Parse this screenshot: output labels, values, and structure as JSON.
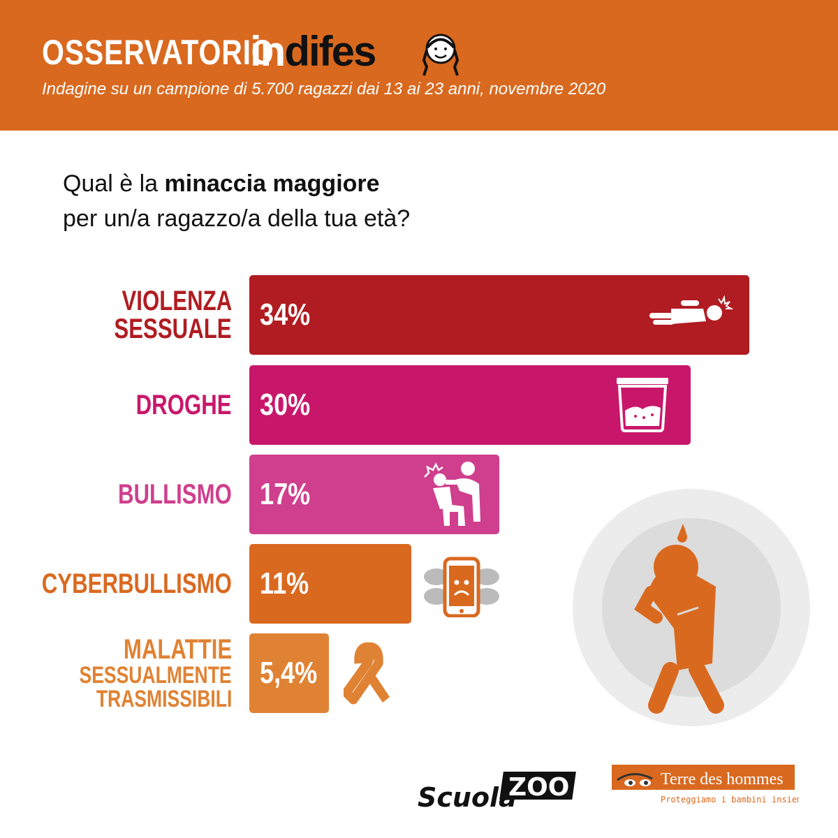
{
  "header": {
    "brand_prefix": "OSSERVATORIO",
    "brand_in": "in",
    "brand_difes": "difes",
    "subtitle": "Indagine su un campione di 5.700 ragazzi dai 13 ai 23 anni, novembre 2020"
  },
  "question": {
    "plain_start": "Qual è la",
    "bold": "minaccia maggiore",
    "line2": "per un/a ragazzo/a della tua età?"
  },
  "colors": {
    "header_bg": "#d9691f",
    "violenza": "#b01c21",
    "droghe": "#c8176b",
    "bullismo": "#cf3f8d",
    "cyber": "#d9691f",
    "malattie": "#e08233"
  },
  "chart_data": {
    "type": "bar",
    "orientation": "horizontal",
    "categories": [
      "VIOLENZA SESSUALE",
      "DROGHE",
      "BULLISMO",
      "CYBERBULLISMO",
      "MALATTIE SESSUALMENTE TRASMISSIBILI"
    ],
    "category_lines": [
      [
        "VIOLENZA",
        "SESSUALE"
      ],
      [
        "DROGHE"
      ],
      [
        "BULLISMO"
      ],
      [
        "CYBERBULLISMO"
      ],
      [
        "MALATTIE",
        "SESSUALMENTE",
        "TRASMISSIBILI"
      ]
    ],
    "values": [
      34,
      30,
      17,
      11,
      5.4
    ],
    "value_labels": [
      "34%",
      "30%",
      "17%",
      "11%",
      "5,4%"
    ],
    "colors": [
      "#b01c21",
      "#c8176b",
      "#cf3f8d",
      "#d9691f",
      "#e08233"
    ],
    "icons": [
      "fallen-person-icon",
      "drug-bag-icon",
      "bullying-icon",
      "sad-phone-icon",
      "awareness-ribbon-icon"
    ],
    "xlim": [
      0,
      34
    ]
  },
  "footer": {
    "scuola": "Scuola",
    "zoo": "ZOO",
    "tdh_name": "Terre des hommes",
    "tdh_tagline": "Proteggiamo i bambini insieme"
  }
}
